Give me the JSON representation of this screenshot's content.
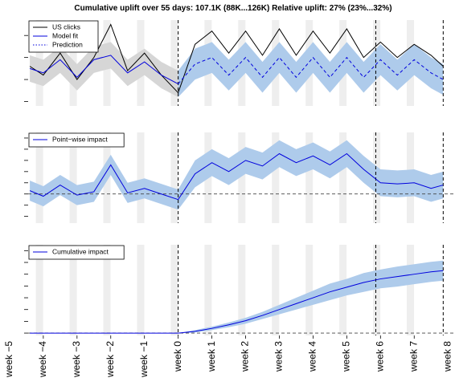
{
  "chart_data": [
    {
      "type": "line",
      "title": "Cumulative uplift over 55 days: 107.1K (88K...126K)   Relative uplift: 27% (23%...32%)",
      "x": [
        -4.4,
        -4,
        -3.5,
        -3,
        -2.5,
        -2,
        -1.5,
        -1,
        -0.5,
        0,
        0.5,
        1,
        1.5,
        2,
        2.5,
        3,
        3.5,
        4,
        4.5,
        5,
        5.5,
        6,
        6.5,
        7,
        7.5,
        7.86
      ],
      "xlim": [
        -4.45,
        7.9
      ],
      "ylim": [
        0.8,
        4.7
      ],
      "yticks": [
        1,
        2,
        3,
        4
      ],
      "vlines": [
        0,
        5.86,
        7.86
      ],
      "series": [
        {
          "name": "US clicks",
          "color": "#000000",
          "dash": false,
          "values": [
            2.6,
            2.2,
            3.2,
            2.0,
            3.0,
            4.5,
            2.4,
            3.2,
            2.2,
            1.4,
            3.6,
            4.2,
            3.2,
            4.2,
            3.1,
            4.3,
            3.1,
            4.2,
            3.2,
            4.3,
            3.0,
            3.7,
            3.0,
            3.6,
            3.1,
            2.6
          ]
        },
        {
          "name": "Model fit",
          "color": "#0000dd",
          "dash": false,
          "values": [
            2.5,
            2.3,
            2.9,
            2.1,
            2.9,
            3.1,
            2.3,
            2.8,
            2.2,
            1.8,
            null,
            null,
            null,
            null,
            null,
            null,
            null,
            null,
            null,
            null,
            null,
            null,
            null,
            null,
            null,
            null
          ]
        },
        {
          "name": "Prediction",
          "color": "#0000dd",
          "dash": true,
          "values": [
            null,
            null,
            null,
            null,
            null,
            null,
            null,
            null,
            null,
            1.8,
            2.7,
            3.0,
            2.2,
            3.0,
            2.1,
            3.0,
            2.1,
            3.0,
            2.1,
            3.0,
            2.1,
            2.9,
            2.2,
            2.9,
            2.3,
            2.0
          ]
        }
      ],
      "bands": [
        {
          "color": "#d6d6d6",
          "lower": [
            1.9,
            1.7,
            2.3,
            1.5,
            2.3,
            2.5,
            1.7,
            2.2,
            1.6,
            1.2,
            null,
            null,
            null,
            null,
            null,
            null,
            null,
            null,
            null,
            null,
            null,
            null,
            null,
            null,
            null,
            null
          ],
          "upper": [
            3.1,
            2.9,
            3.5,
            2.7,
            3.5,
            3.7,
            2.9,
            3.4,
            2.8,
            2.4,
            null,
            null,
            null,
            null,
            null,
            null,
            null,
            null,
            null,
            null,
            null,
            null,
            null,
            null,
            null,
            null
          ]
        },
        {
          "color": "#aecbeb",
          "lower": [
            null,
            null,
            null,
            null,
            null,
            null,
            null,
            null,
            null,
            1.2,
            2.0,
            2.3,
            1.5,
            2.3,
            1.4,
            2.3,
            1.4,
            2.3,
            1.4,
            2.3,
            1.4,
            2.2,
            1.5,
            2.2,
            1.6,
            1.3
          ],
          "upper": [
            null,
            null,
            null,
            null,
            null,
            null,
            null,
            null,
            null,
            2.4,
            3.4,
            3.7,
            2.9,
            3.7,
            2.8,
            3.7,
            2.8,
            3.7,
            2.8,
            3.7,
            2.8,
            3.6,
            2.9,
            3.6,
            3.0,
            2.7
          ]
        }
      ]
    },
    {
      "type": "line",
      "x": [
        -4.4,
        -4,
        -3.5,
        -3,
        -2.5,
        -2,
        -1.5,
        -1,
        -0.5,
        0,
        0.5,
        1,
        1.5,
        2,
        2.5,
        3,
        3.5,
        4,
        4.5,
        5,
        5.5,
        6,
        6.5,
        7,
        7.5,
        7.86
      ],
      "xlim": [
        -4.45,
        7.9
      ],
      "ylim": [
        -2.6,
        5.5
      ],
      "yticks": [
        -2,
        -1,
        0,
        1,
        2,
        3,
        4,
        5
      ],
      "vlines": [
        0,
        5.86,
        7.86
      ],
      "hline": 0,
      "series": [
        {
          "name": "Point−wise impact",
          "color": "#0000dd",
          "dash": false,
          "values": [
            0.3,
            -0.2,
            0.8,
            -0.1,
            0.2,
            2.6,
            0.1,
            0.5,
            0.0,
            -0.5,
            1.8,
            2.8,
            2.0,
            3.0,
            2.5,
            3.6,
            2.8,
            3.4,
            2.6,
            3.6,
            2.2,
            1.0,
            0.9,
            1.0,
            0.5,
            0.8
          ]
        }
      ],
      "bands": [
        {
          "color": "#aecbeb",
          "lower": [
            -0.6,
            -1.1,
            -0.1,
            -1.0,
            -0.7,
            1.7,
            -0.8,
            -0.4,
            -0.9,
            -1.4,
            0.6,
            1.6,
            0.8,
            1.8,
            1.3,
            2.4,
            1.6,
            2.2,
            1.4,
            2.4,
            1.0,
            -0.2,
            -0.3,
            -0.2,
            -0.7,
            -0.4
          ],
          "upper": [
            1.2,
            0.7,
            1.7,
            0.8,
            1.1,
            3.5,
            1.0,
            1.4,
            0.9,
            0.4,
            3.0,
            4.0,
            3.2,
            4.2,
            3.7,
            4.8,
            4.0,
            4.6,
            3.8,
            4.8,
            3.4,
            2.2,
            2.1,
            2.2,
            1.7,
            2.0
          ]
        }
      ]
    },
    {
      "type": "line",
      "x": [
        -4.4,
        -4,
        -3.5,
        -3,
        -2.5,
        -2,
        -1.5,
        -1,
        -0.5,
        0,
        0.5,
        1,
        1.5,
        2,
        2.5,
        3,
        3.5,
        4,
        4.5,
        5,
        5.5,
        6,
        6.5,
        7,
        7.5,
        7.86
      ],
      "xlim": [
        -4.45,
        7.9
      ],
      "ylim": [
        -0.2,
        7.5
      ],
      "yticks": [
        0,
        1,
        2,
        3,
        4,
        5,
        6,
        7
      ],
      "vlines": [
        0,
        5.86,
        7.86
      ],
      "hline": 0,
      "xticks": [
        {
          "value": -5,
          "label": "week −5"
        },
        {
          "value": -4,
          "label": "week −4"
        },
        {
          "value": -3,
          "label": "week −3"
        },
        {
          "value": -2,
          "label": "week −2"
        },
        {
          "value": -1,
          "label": "week −1"
        },
        {
          "value": 0,
          "label": "week 0"
        },
        {
          "value": 1,
          "label": "week 1"
        },
        {
          "value": 2,
          "label": "week 2"
        },
        {
          "value": 3,
          "label": "week 3"
        },
        {
          "value": 4,
          "label": "week 4"
        },
        {
          "value": 5,
          "label": "week 5"
        },
        {
          "value": 6,
          "label": "week 6"
        },
        {
          "value": 7,
          "label": "week 7"
        },
        {
          "value": 8,
          "label": "week 8"
        }
      ],
      "series": [
        {
          "name": "Cumulative impact",
          "color": "#0000dd",
          "dash": false,
          "values": [
            0,
            0,
            0,
            0,
            0,
            0,
            0,
            0,
            0,
            0,
            0.15,
            0.4,
            0.7,
            1.05,
            1.5,
            2.0,
            2.5,
            3.0,
            3.5,
            3.9,
            4.3,
            4.6,
            4.8,
            5.0,
            5.2,
            5.3
          ]
        }
      ],
      "bands": [
        {
          "color": "#aecbeb",
          "lower": [
            0,
            0,
            0,
            0,
            0,
            0,
            0,
            0,
            0,
            0,
            0.05,
            0.25,
            0.5,
            0.8,
            1.2,
            1.6,
            2.0,
            2.4,
            2.8,
            3.2,
            3.5,
            3.8,
            3.95,
            4.15,
            4.35,
            4.45
          ],
          "upper": [
            0,
            0,
            0,
            0,
            0,
            0,
            0,
            0,
            0,
            0,
            0.25,
            0.55,
            0.9,
            1.3,
            1.8,
            2.4,
            3.0,
            3.6,
            4.2,
            4.6,
            5.1,
            5.4,
            5.65,
            5.85,
            6.05,
            6.15
          ]
        }
      ]
    }
  ]
}
